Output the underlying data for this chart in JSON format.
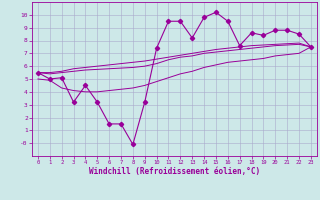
{
  "xlabel": "Windchill (Refroidissement éolien,°C)",
  "bg_color": "#cde8e8",
  "grid_color": "#aaaacc",
  "line_color": "#990099",
  "x_data": [
    0,
    1,
    2,
    3,
    4,
    5,
    6,
    7,
    8,
    9,
    10,
    11,
    12,
    13,
    14,
    15,
    16,
    17,
    18,
    19,
    20,
    21,
    22,
    23
  ],
  "y_main": [
    5.5,
    5.0,
    5.1,
    3.2,
    4.5,
    3.2,
    1.5,
    1.5,
    -0.1,
    3.2,
    7.4,
    9.5,
    9.5,
    8.2,
    9.8,
    10.2,
    9.5,
    7.6,
    8.6,
    8.4,
    8.8,
    8.8,
    8.5,
    7.5
  ],
  "y_reg_low": [
    5.0,
    4.9,
    4.3,
    4.1,
    4.0,
    4.0,
    4.1,
    4.2,
    4.3,
    4.5,
    4.8,
    5.1,
    5.4,
    5.6,
    5.9,
    6.1,
    6.3,
    6.4,
    6.5,
    6.6,
    6.8,
    6.9,
    7.0,
    7.5
  ],
  "y_reg_mid": [
    5.5,
    5.4,
    5.5,
    5.6,
    5.7,
    5.75,
    5.8,
    5.85,
    5.9,
    6.0,
    6.2,
    6.5,
    6.7,
    6.8,
    7.0,
    7.1,
    7.2,
    7.3,
    7.4,
    7.5,
    7.6,
    7.65,
    7.7,
    7.5
  ],
  "y_reg_high": [
    5.5,
    5.5,
    5.6,
    5.8,
    5.9,
    6.0,
    6.1,
    6.2,
    6.3,
    6.4,
    6.55,
    6.7,
    6.85,
    7.0,
    7.15,
    7.3,
    7.4,
    7.5,
    7.6,
    7.65,
    7.7,
    7.75,
    7.8,
    7.5
  ],
  "ylim": [
    -1,
    11
  ],
  "xlim": [
    -0.5,
    23.5
  ],
  "xticks": [
    0,
    1,
    2,
    3,
    4,
    5,
    6,
    7,
    8,
    9,
    10,
    11,
    12,
    13,
    14,
    15,
    16,
    17,
    18,
    19,
    20,
    21,
    22,
    23
  ],
  "yticks": [
    0,
    1,
    2,
    3,
    4,
    5,
    6,
    7,
    8,
    9,
    10
  ],
  "marker": "D",
  "markersize": 2.2,
  "linewidth_main": 0.8,
  "linewidth_reg": 0.7
}
